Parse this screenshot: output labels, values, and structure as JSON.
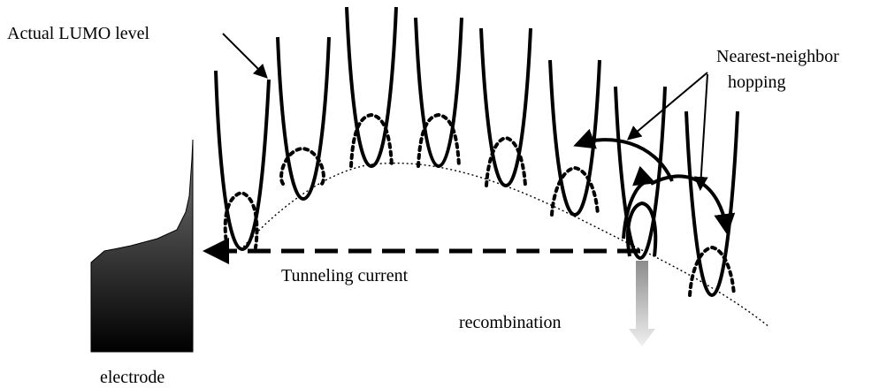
{
  "labels": {
    "lumo": "Actual LUMO level",
    "hopping_line1": "Nearest-neighbor",
    "hopping_line2": "hopping",
    "tunneling": "Tunneling current",
    "recombination": "recombination",
    "electrode": "electrode"
  },
  "colors": {
    "ink": "#000000",
    "electrode_top": "#777777",
    "electrode_bottom": "#000000",
    "recomb_top": "#999999",
    "recomb_bottom": "#f2f2f2"
  }
}
